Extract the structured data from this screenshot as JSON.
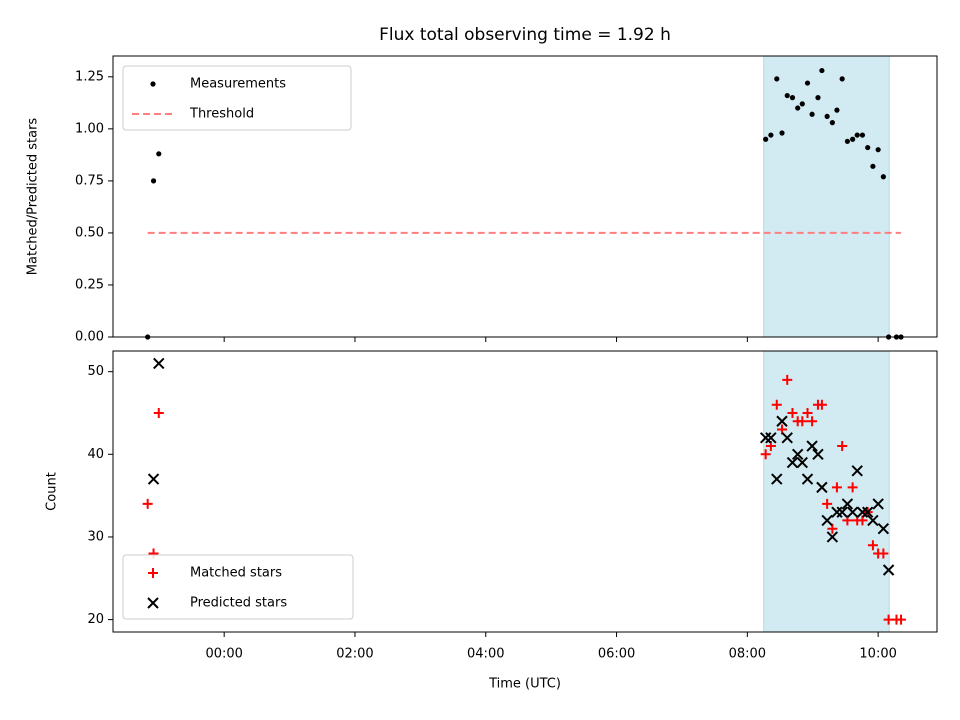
{
  "chart_data": [
    {
      "type": "scatter",
      "title": "Flux total observing time = 1.92 h",
      "ylabel": "Matched/Predicted stars",
      "xlabel": "",
      "x_unit": "hours (UTC, relative to 00:00)",
      "xlim": [
        -1.7,
        10.9
      ],
      "ylim": [
        0,
        1.35
      ],
      "yticks": [
        0.0,
        0.25,
        0.5,
        0.75,
        1.0,
        1.25
      ],
      "ytick_labels": [
        "0.00",
        "0.25",
        "0.50",
        "0.75",
        "1.00",
        "1.25"
      ],
      "shaded_interval": [
        8.25,
        10.17
      ],
      "shade_color": "#add8e6",
      "legend_position": "top-left",
      "series": [
        {
          "name": "Measurements",
          "marker": "dot",
          "color": "#000000",
          "x": [
            -1.17,
            -1.08,
            -1.0,
            8.28,
            8.36,
            8.45,
            8.53,
            8.61,
            8.69,
            8.77,
            8.84,
            8.92,
            8.99,
            9.08,
            9.14,
            9.22,
            9.3,
            9.37,
            9.45,
            9.53,
            9.61,
            9.68,
            9.76,
            9.84,
            9.92,
            10.0,
            10.08,
            10.16,
            10.28,
            10.35
          ],
          "y": [
            0.0,
            0.75,
            0.88,
            0.95,
            0.97,
            1.24,
            0.98,
            1.16,
            1.15,
            1.1,
            1.12,
            1.22,
            1.07,
            1.15,
            1.28,
            1.06,
            1.03,
            1.09,
            1.24,
            0.94,
            0.95,
            0.97,
            0.97,
            0.91,
            0.82,
            0.9,
            0.77,
            0.0,
            0.0,
            0.0
          ]
        },
        {
          "name": "Threshold",
          "style": "dashed",
          "color": "#ff7f7f",
          "x": [
            -1.17,
            10.35
          ],
          "y": [
            0.5,
            0.5
          ]
        }
      ]
    },
    {
      "type": "scatter",
      "title": "",
      "ylabel": "Count",
      "xlabel": "Time (UTC)",
      "x_unit": "hours (UTC, relative to 00:00)",
      "xlim": [
        -1.7,
        10.9
      ],
      "ylim": [
        18.5,
        52.5
      ],
      "yticks": [
        20,
        30,
        40,
        50
      ],
      "ytick_labels": [
        "20",
        "30",
        "40",
        "50"
      ],
      "xticks": [
        0,
        2,
        4,
        6,
        8,
        10
      ],
      "xtick_labels": [
        "00:00",
        "02:00",
        "04:00",
        "06:00",
        "08:00",
        "10:00"
      ],
      "shaded_interval": [
        8.25,
        10.17
      ],
      "shade_color": "#add8e6",
      "legend_position": "bottom-left",
      "series": [
        {
          "name": "Matched stars",
          "marker": "plus",
          "color": "#ff0000",
          "x": [
            -1.17,
            -1.08,
            -1.0,
            8.28,
            8.36,
            8.45,
            8.53,
            8.61,
            8.69,
            8.77,
            8.84,
            8.92,
            8.99,
            9.08,
            9.14,
            9.22,
            9.3,
            9.37,
            9.45,
            9.53,
            9.61,
            9.68,
            9.76,
            9.84,
            9.92,
            10.0,
            10.08,
            10.16,
            10.28,
            10.35
          ],
          "y": [
            34,
            28,
            45,
            40,
            41,
            46,
            43,
            49,
            45,
            44,
            44,
            45,
            44,
            46,
            46,
            34,
            31,
            36,
            41,
            32,
            36,
            32,
            32,
            33,
            29,
            28,
            28,
            20,
            20,
            20
          ]
        },
        {
          "name": "Predicted stars",
          "marker": "x",
          "color": "#000000",
          "x": [
            -1.08,
            -1.0,
            8.28,
            8.36,
            8.45,
            8.53,
            8.61,
            8.69,
            8.77,
            8.84,
            8.92,
            8.99,
            9.08,
            9.14,
            9.22,
            9.3,
            9.37,
            9.45,
            9.53,
            9.61,
            9.68,
            9.76,
            9.84,
            9.92,
            10.0,
            10.08,
            10.16
          ],
          "y": [
            37,
            51,
            42,
            42,
            37,
            44,
            42,
            39,
            40,
            39,
            37,
            41,
            40,
            36,
            32,
            30,
            33,
            33,
            34,
            33,
            38,
            33,
            33,
            32,
            34,
            31,
            26
          ]
        }
      ]
    }
  ]
}
